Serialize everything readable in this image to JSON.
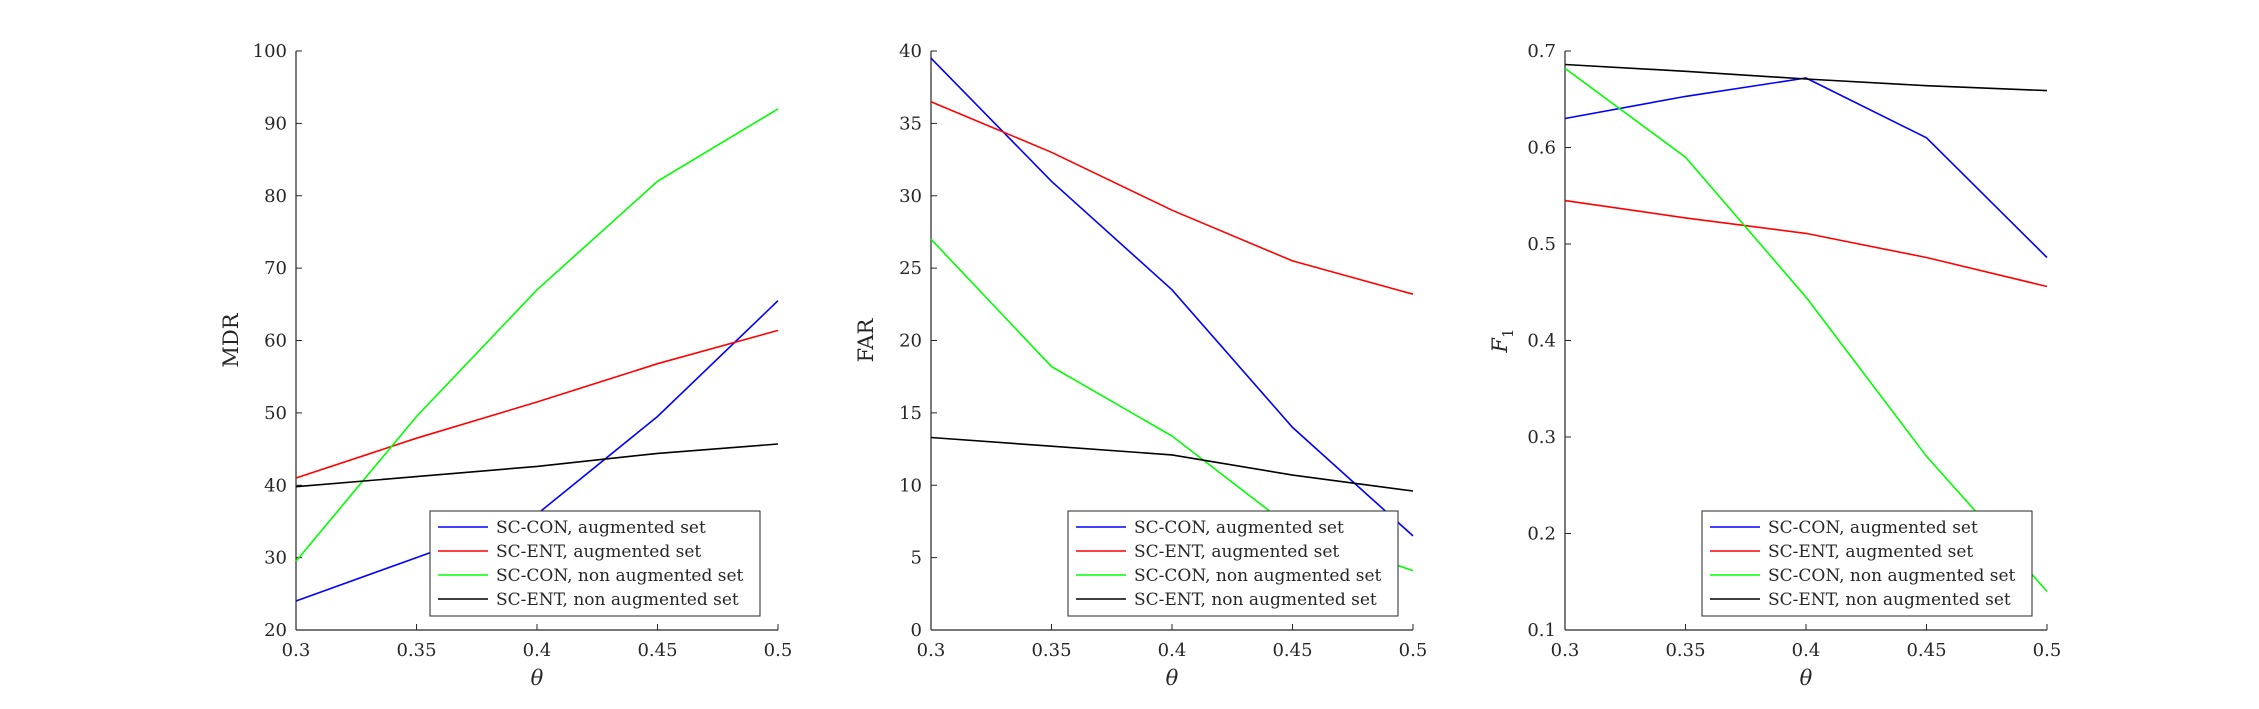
{
  "chart_data": [
    {
      "type": "line",
      "title": "",
      "xlabel": "θ",
      "ylabel": "MDR",
      "xlim": [
        0.3,
        0.5
      ],
      "ylim": [
        20,
        100
      ],
      "x": [
        0.3,
        0.35,
        0.4,
        0.45,
        0.5
      ],
      "xticks": [
        "0.3",
        "0.35",
        "0.4",
        "0.45",
        "0.5"
      ],
      "yticks": [
        "20",
        "30",
        "40",
        "50",
        "60",
        "70",
        "80",
        "90",
        "100"
      ],
      "legend_position": "bottom-right",
      "grid": false,
      "series": [
        {
          "name": "SC-CON, augmented set",
          "color": "#0000ff",
          "values": [
            24,
            30,
            36,
            49.5,
            65.5
          ]
        },
        {
          "name": "SC-ENT, augmented set",
          "color": "#ff0000",
          "values": [
            41,
            46.5,
            51.5,
            56.8,
            61.4
          ]
        },
        {
          "name": "SC-CON, non augmented set",
          "color": "#00ff00",
          "values": [
            29.5,
            49.5,
            67,
            82,
            92
          ]
        },
        {
          "name": "SC-ENT, non augmented set",
          "color": "#000000",
          "values": [
            39.8,
            41.2,
            42.6,
            44.4,
            45.7
          ]
        }
      ]
    },
    {
      "type": "line",
      "title": "",
      "xlabel": "θ",
      "ylabel": "FAR",
      "xlim": [
        0.3,
        0.5
      ],
      "ylim": [
        0,
        40
      ],
      "x": [
        0.3,
        0.35,
        0.4,
        0.45,
        0.5
      ],
      "xticks": [
        "0.3",
        "0.35",
        "0.4",
        "0.45",
        "0.5"
      ],
      "yticks": [
        "0",
        "5",
        "10",
        "15",
        "20",
        "25",
        "30",
        "35",
        "40"
      ],
      "legend_position": "bottom-right",
      "grid": false,
      "series": [
        {
          "name": "SC-CON, augmented set",
          "color": "#0000ff",
          "values": [
            39.5,
            31,
            23.5,
            14,
            6.5
          ]
        },
        {
          "name": "SC-ENT, augmented set",
          "color": "#ff0000",
          "values": [
            36.5,
            33,
            29,
            25.5,
            23.2
          ]
        },
        {
          "name": "SC-CON, non augmented set",
          "color": "#00ff00",
          "values": [
            27,
            18.2,
            13.4,
            7,
            4.1
          ]
        },
        {
          "name": "SC-ENT, non augmented set",
          "color": "#000000",
          "values": [
            13.3,
            12.7,
            12.1,
            10.7,
            9.6
          ]
        }
      ]
    },
    {
      "type": "line",
      "title": "",
      "xlabel": "θ",
      "ylabel": "F",
      "ylabel_sub": "1",
      "xlim": [
        0.3,
        0.5
      ],
      "ylim": [
        0.1,
        0.7
      ],
      "x": [
        0.3,
        0.35,
        0.4,
        0.45,
        0.5
      ],
      "xticks": [
        "0.3",
        "0.35",
        "0.4",
        "0.45",
        "0.5"
      ],
      "yticks": [
        "0.1",
        "0.2",
        "0.3",
        "0.4",
        "0.5",
        "0.6",
        "0.7"
      ],
      "legend_position": "bottom-right",
      "grid": false,
      "series": [
        {
          "name": "SC-CON, augmented set",
          "color": "#0000ff",
          "values": [
            0.63,
            0.653,
            0.672,
            0.61,
            0.486
          ]
        },
        {
          "name": "SC-ENT, augmented set",
          "color": "#ff0000",
          "values": [
            0.545,
            0.527,
            0.511,
            0.486,
            0.456
          ]
        },
        {
          "name": "SC-CON, non augmented set",
          "color": "#00ff00",
          "values": [
            0.682,
            0.59,
            0.445,
            0.28,
            0.14
          ]
        },
        {
          "name": "SC-ENT, non augmented set",
          "color": "#000000",
          "values": [
            0.686,
            0.679,
            0.671,
            0.664,
            0.659
          ]
        }
      ]
    }
  ]
}
